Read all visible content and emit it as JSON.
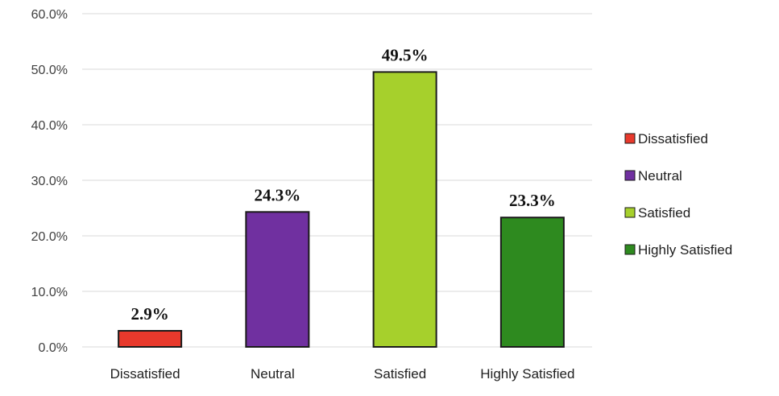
{
  "chart_data": {
    "type": "bar",
    "categories": [
      "Dissatisfied",
      "Neutral",
      "Satisfied",
      "Highly Satisfied"
    ],
    "values": [
      2.9,
      24.3,
      49.5,
      23.3
    ],
    "data_labels": [
      "2.9%",
      "24.3%",
      "49.5%",
      "23.3%"
    ],
    "colors": [
      "#e8392c",
      "#7030a0",
      "#a6d02c",
      "#2e8a1f"
    ],
    "ylim": [
      0,
      60
    ],
    "yticks": [
      0,
      10,
      20,
      30,
      40,
      50,
      60
    ],
    "ytick_labels": [
      "0.0%",
      "10.0%",
      "20.0%",
      "30.0%",
      "40.0%",
      "50.0%",
      "60.0%"
    ],
    "legend": {
      "position": "right",
      "entries": [
        "Dissatisfied",
        "Neutral",
        "Satisfied",
        "Highly Satisfied"
      ]
    },
    "grid": true,
    "title": "",
    "xlabel": "",
    "ylabel": ""
  }
}
